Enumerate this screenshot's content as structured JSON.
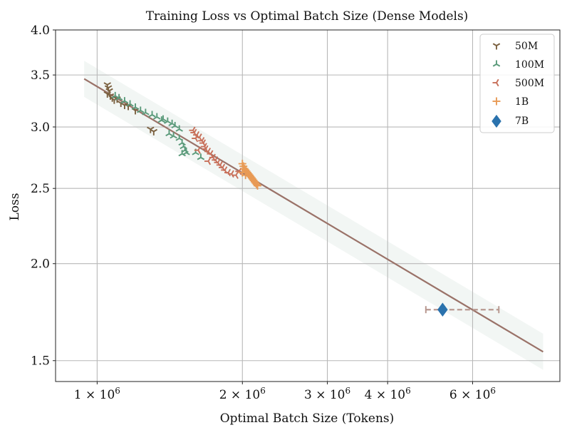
{
  "chart_data": {
    "type": "scatter",
    "title": "Training Loss vs Optimal Batch Size (Dense Models)",
    "xlabel": "Optimal Batch Size (Tokens)",
    "ylabel": "Loss",
    "xscale": "log",
    "yscale": "log",
    "xlim": [
      820000,
      9100000
    ],
    "ylim": [
      1.41,
      4.0
    ],
    "grid": true,
    "legend_position": "top-right",
    "x_ticks": [
      {
        "value": 1000000,
        "mantissa": "1",
        "exponent": "6"
      },
      {
        "value": 2000000,
        "mantissa": "2",
        "exponent": "6"
      },
      {
        "value": 3000000,
        "mantissa": "3",
        "exponent": "6"
      },
      {
        "value": 4000000,
        "mantissa": "4",
        "exponent": "6"
      },
      {
        "value": 6000000,
        "mantissa": "6",
        "exponent": "6"
      }
    ],
    "x_tick_times": "×",
    "x_tick_base": "10",
    "y_ticks": [
      {
        "value": 4.0,
        "label": "4.0"
      },
      {
        "value": 3.5,
        "label": "3.5"
      },
      {
        "value": 3.0,
        "label": "3.0"
      },
      {
        "value": 2.5,
        "label": "2.5"
      },
      {
        "value": 2.0,
        "label": "2.0"
      },
      {
        "value": 1.5,
        "label": "1.5"
      }
    ],
    "fit_line": {
      "x": [
        940000,
        8400000
      ],
      "y": [
        3.46,
        1.54
      ],
      "color": "#9a7268",
      "band_factor": 1.055,
      "band_color": "#dbe4df"
    },
    "series": [
      {
        "name": "50M",
        "color": "#7b6140",
        "marker": "tri_down",
        "points": [
          [
            1050000,
            3.4
          ],
          [
            1055000,
            3.37
          ],
          [
            1060000,
            3.34
          ],
          [
            1050000,
            3.31
          ],
          [
            1065000,
            3.29
          ],
          [
            1075000,
            3.27
          ],
          [
            1085000,
            3.25
          ],
          [
            1100000,
            3.26
          ],
          [
            1120000,
            3.22
          ],
          [
            1140000,
            3.2
          ],
          [
            1160000,
            3.19
          ],
          [
            1200000,
            3.15
          ],
          [
            1290000,
            2.98
          ],
          [
            1310000,
            2.96
          ]
        ]
      },
      {
        "name": "100M",
        "color": "#5a9a7a",
        "marker": "tri_up",
        "points": [
          [
            1090000,
            3.29
          ],
          [
            1110000,
            3.27
          ],
          [
            1140000,
            3.24
          ],
          [
            1170000,
            3.21
          ],
          [
            1200000,
            3.18
          ],
          [
            1230000,
            3.15
          ],
          [
            1260000,
            3.13
          ],
          [
            1300000,
            3.11
          ],
          [
            1330000,
            3.09
          ],
          [
            1370000,
            3.07
          ],
          [
            1400000,
            3.05
          ],
          [
            1430000,
            3.03
          ],
          [
            1450000,
            3.01
          ],
          [
            1480000,
            2.98
          ],
          [
            1360000,
            3.06
          ],
          [
            1410000,
            2.94
          ],
          [
            1440000,
            2.92
          ],
          [
            1480000,
            2.9
          ],
          [
            1500000,
            2.86
          ],
          [
            1510000,
            2.83
          ],
          [
            1520000,
            2.8
          ],
          [
            1500000,
            2.77
          ],
          [
            1530000,
            2.78
          ],
          [
            1600000,
            2.78
          ],
          [
            1640000,
            2.74
          ]
        ]
      },
      {
        "name": "500M",
        "color": "#c8705a",
        "marker": "tri_left",
        "points": [
          [
            1580000,
            2.97
          ],
          [
            1590000,
            2.95
          ],
          [
            1610000,
            2.93
          ],
          [
            1630000,
            2.91
          ],
          [
            1650000,
            2.88
          ],
          [
            1660000,
            2.86
          ],
          [
            1670000,
            2.83
          ],
          [
            1680000,
            2.81
          ],
          [
            1700000,
            2.79
          ],
          [
            1720000,
            2.77
          ],
          [
            1740000,
            2.74
          ],
          [
            1760000,
            2.72
          ],
          [
            1780000,
            2.7
          ],
          [
            1800000,
            2.68
          ],
          [
            1820000,
            2.66
          ],
          [
            1840000,
            2.64
          ],
          [
            1870000,
            2.62
          ],
          [
            1900000,
            2.61
          ],
          [
            1940000,
            2.6
          ],
          [
            1970000,
            2.63
          ],
          [
            1600000,
            2.9
          ],
          [
            1620000,
            2.8
          ],
          [
            1700000,
            2.71
          ]
        ]
      },
      {
        "name": "1B",
        "color": "#e89a55",
        "marker": "plus",
        "points": [
          [
            2000000,
            2.69
          ],
          [
            2010000,
            2.67
          ],
          [
            2020000,
            2.65
          ],
          [
            2030000,
            2.64
          ],
          [
            2040000,
            2.63
          ],
          [
            2050000,
            2.62
          ],
          [
            2060000,
            2.61
          ],
          [
            2070000,
            2.6
          ],
          [
            2080000,
            2.59
          ],
          [
            2090000,
            2.58
          ],
          [
            2100000,
            2.57
          ],
          [
            2110000,
            2.56
          ],
          [
            2120000,
            2.55
          ],
          [
            2130000,
            2.54
          ],
          [
            2140000,
            2.53
          ],
          [
            2150000,
            2.52
          ],
          [
            2000000,
            2.62
          ],
          [
            2030000,
            2.6
          ]
        ]
      },
      {
        "name": "7B",
        "color": "#2a72ad",
        "marker": "diamond",
        "points": [
          [
            5200000,
            1.745
          ]
        ],
        "xerr": {
          "low": 4800000,
          "high": 6800000,
          "color": "#b89890"
        }
      }
    ]
  }
}
